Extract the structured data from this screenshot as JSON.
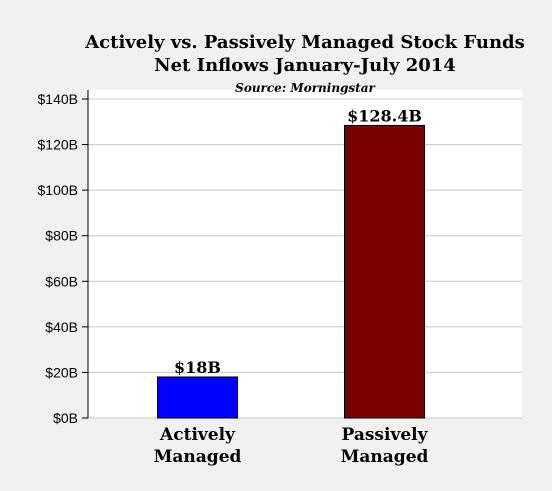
{
  "chart_data": {
    "type": "bar",
    "title": "Actively vs. Passively Managed Stock Funds",
    "subtitle": "Net Inflows January-July 2014",
    "annotation": "Source: Morningstar",
    "categories": [
      [
        "Actively",
        "Managed"
      ],
      [
        "Passively",
        "Managed"
      ]
    ],
    "values": [
      18,
      128.4
    ],
    "data_labels": [
      "$18B",
      "$128.4B"
    ],
    "colors": [
      "#0000ff",
      "#7b0000"
    ],
    "ylim": [
      0,
      140
    ],
    "yticks": [
      0,
      20,
      40,
      60,
      80,
      100,
      120,
      140
    ],
    "ytick_labels": [
      "$0B",
      "$20B",
      "$40B",
      "$60B",
      "$80B",
      "$100B",
      "$120B",
      "$140B"
    ],
    "grid": "horizontal",
    "legend": "none",
    "xlabel": "",
    "ylabel": ""
  }
}
